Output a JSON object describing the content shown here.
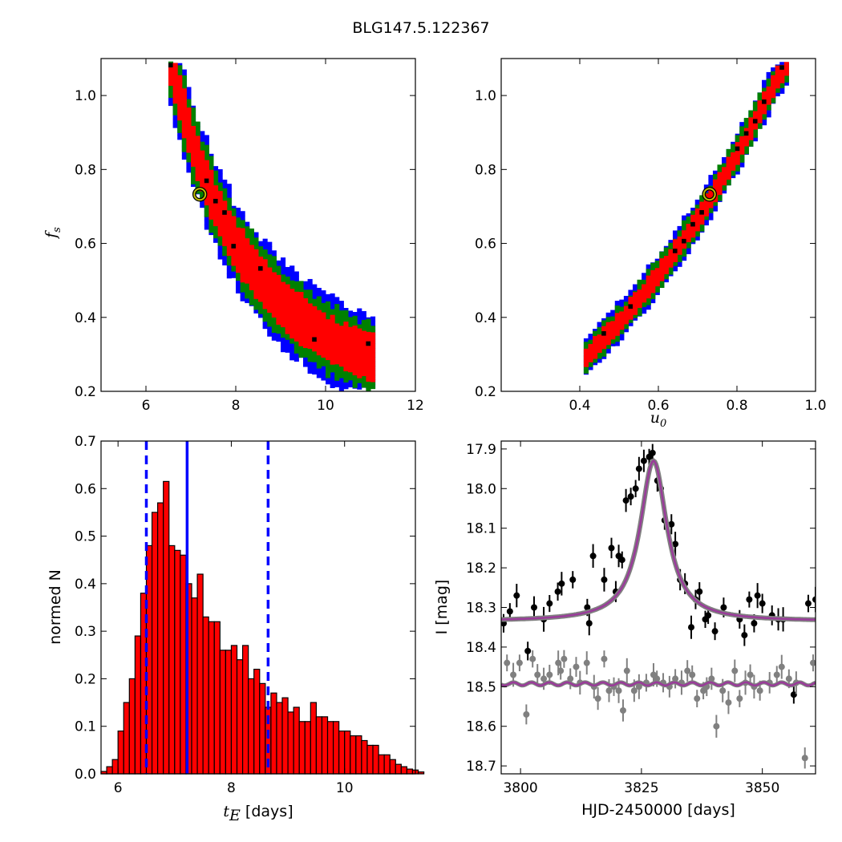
{
  "title": "BLG147.5.122367",
  "chart_data": [
    {
      "type": "heatmap",
      "panel": "top-left",
      "xlabel": "",
      "ylabel_main": "f",
      "ylabel_sub": "s",
      "xlim": [
        5,
        12
      ],
      "ylim": [
        0.2,
        1.1
      ],
      "xticks": [
        6,
        8,
        10,
        12
      ],
      "xtick_labels": [
        "6",
        "8",
        "10",
        "12"
      ],
      "yticks": [
        0.2,
        0.4,
        0.6,
        0.8,
        1.0
      ],
      "ytick_labels": [
        "0.2",
        "0.4",
        "0.6",
        "0.8",
        "1.0"
      ],
      "band": [
        [
          6.5,
          1.08
        ],
        [
          7.0,
          0.86
        ],
        [
          7.5,
          0.7
        ],
        [
          8.0,
          0.58
        ],
        [
          8.5,
          0.5
        ],
        [
          9.0,
          0.43
        ],
        [
          9.5,
          0.38
        ],
        [
          10.0,
          0.34
        ],
        [
          10.5,
          0.31
        ],
        [
          11.0,
          0.29
        ]
      ],
      "best_fit": [
        7.2,
        0.733
      ],
      "colors": {
        "3sigma": "#0000ff",
        "2sigma": "#008000",
        "1sigma": "#ff0000",
        "best": "#000000",
        "marker_edge": "#bfbf00"
      }
    },
    {
      "type": "heatmap",
      "panel": "top-right",
      "xlabel_main": "u",
      "xlabel_sub": "0",
      "ylabel": "",
      "xlim": [
        0.2,
        1.0
      ],
      "ylim": [
        0.2,
        1.1
      ],
      "xticks": [
        0.4,
        0.6,
        0.8,
        1.0
      ],
      "xtick_labels": [
        "0.4",
        "0.6",
        "0.8",
        "1.0"
      ],
      "yticks": [
        0.2,
        0.4,
        0.6,
        0.8,
        1.0
      ],
      "ytick_labels": [
        "0.2",
        "0.4",
        "0.6",
        "0.8",
        "1.0"
      ],
      "band": [
        [
          0.41,
          0.29
        ],
        [
          0.5,
          0.39
        ],
        [
          0.6,
          0.52
        ],
        [
          0.7,
          0.67
        ],
        [
          0.8,
          0.85
        ],
        [
          0.9,
          1.05
        ],
        [
          0.92,
          1.08
        ]
      ],
      "best_fit": [
        0.73,
        0.733
      ],
      "colors": {
        "3sigma": "#0000ff",
        "2sigma": "#008000",
        "1sigma": "#ff0000",
        "best": "#000000",
        "marker_edge": "#bfbf00"
      }
    },
    {
      "type": "bar",
      "panel": "bottom-left",
      "xlabel_main": "t",
      "xlabel_sub": "E",
      "xlabel_unit": " [days]",
      "ylabel": "normed N",
      "xlim": [
        5.7,
        11.25
      ],
      "ylim": [
        0,
        0.7
      ],
      "xticks": [
        6,
        8,
        10
      ],
      "xtick_labels": [
        "6",
        "8",
        "10"
      ],
      "yticks": [
        0.0,
        0.1,
        0.2,
        0.3,
        0.4,
        0.5,
        0.6,
        0.7
      ],
      "ytick_labels": [
        "0.0",
        "0.1",
        "0.2",
        "0.3",
        "0.4",
        "0.5",
        "0.6",
        "0.7"
      ],
      "bin_start": 5.7,
      "bin_width": 0.1,
      "values": [
        0.005,
        0.015,
        0.03,
        0.09,
        0.15,
        0.2,
        0.29,
        0.38,
        0.48,
        0.55,
        0.57,
        0.615,
        0.48,
        0.47,
        0.46,
        0.4,
        0.37,
        0.42,
        0.33,
        0.32,
        0.32,
        0.26,
        0.26,
        0.27,
        0.24,
        0.27,
        0.2,
        0.22,
        0.19,
        0.14,
        0.17,
        0.15,
        0.16,
        0.13,
        0.14,
        0.11,
        0.11,
        0.15,
        0.12,
        0.12,
        0.11,
        0.11,
        0.09,
        0.09,
        0.08,
        0.08,
        0.07,
        0.06,
        0.06,
        0.04,
        0.04,
        0.03,
        0.02,
        0.015,
        0.01,
        0.008,
        0.004
      ],
      "median": 7.22,
      "interval": [
        6.5,
        8.65
      ],
      "colors": {
        "bar": "#ff0000",
        "edge": "#000000",
        "lines": "#0000ff"
      }
    },
    {
      "type": "scatter",
      "panel": "bottom-right",
      "xlabel": "HJD-2450000 [days]",
      "ylabel": "I [mag]",
      "xlim": [
        3796,
        3861
      ],
      "ylim": [
        18.72,
        17.88
      ],
      "xticks": [
        3800,
        3825,
        3850
      ],
      "xtick_labels": [
        "3800",
        "3825",
        "3850"
      ],
      "yticks": [
        17.9,
        18.0,
        18.1,
        18.2,
        18.3,
        18.4,
        18.5,
        18.6,
        18.7
      ],
      "ytick_labels": [
        "17.9",
        "18.0",
        "18.1",
        "18.2",
        "18.3",
        "18.4",
        "18.5",
        "18.6",
        "18.7"
      ],
      "model_lens": {
        "t0": 3827.5,
        "peak": 17.93,
        "baseline": 18.335,
        "width": 3.2
      },
      "model_residual": {
        "level": 18.493
      },
      "series": [
        {
          "x": [
            3796.5,
            3797.8,
            3799.2,
            3801.5,
            3802.8,
            3804.8,
            3806.0,
            3807.7,
            3808.5,
            3810.8,
            3813.8,
            3814.2,
            3815.0,
            3817.3,
            3818.8,
            3819.7,
            3820.3,
            3821.0,
            3821.8,
            3822.8,
            3823.8,
            3824.5,
            3825.5,
            3826.6,
            3827.3,
            3828.3,
            3829.0,
            3829.8,
            3831.2,
            3832.0,
            3833.0,
            3834.0,
            3835.3,
            3836.2,
            3837.0,
            3838.2,
            3838.8,
            3840.2,
            3842.0,
            3845.3,
            3846.3,
            3847.3,
            3848.3,
            3849.0,
            3850.0,
            3852.0,
            3853.3,
            3854.3,
            3856.5,
            3859.5,
            3861.0
          ],
          "y": [
            18.34,
            18.31,
            18.27,
            18.41,
            18.3,
            18.33,
            18.29,
            18.26,
            18.24,
            18.23,
            18.3,
            18.34,
            18.17,
            18.23,
            18.15,
            18.26,
            18.17,
            18.18,
            18.03,
            18.02,
            18.0,
            17.95,
            17.93,
            17.92,
            17.91,
            17.98,
            18.0,
            18.08,
            18.09,
            18.14,
            18.23,
            18.24,
            18.35,
            18.28,
            18.26,
            18.33,
            18.32,
            18.36,
            18.3,
            18.33,
            18.37,
            18.28,
            18.34,
            18.27,
            18.29,
            18.32,
            18.33,
            18.33,
            18.52,
            18.29,
            18.28
          ]
        },
        {
          "x": [
            3797.2,
            3798.5,
            3799.8,
            3801.2,
            3802.5,
            3803.5,
            3804.8,
            3806.0,
            3807.8,
            3808.3,
            3809.0,
            3810.3,
            3811.5,
            3812.3,
            3813.7,
            3815.2,
            3816.0,
            3817.3,
            3818.3,
            3819.3,
            3820.3,
            3821.2,
            3822.0,
            3823.5,
            3824.5,
            3826.0,
            3827.5,
            3828.2,
            3829.5,
            3830.8,
            3832.0,
            3833.3,
            3834.5,
            3835.5,
            3836.5,
            3837.8,
            3838.5,
            3839.5,
            3840.5,
            3841.8,
            3843.0,
            3844.3,
            3845.3,
            3846.5,
            3847.5,
            3848.3,
            3849.5,
            3851.5,
            3853.0,
            3854.0,
            3855.5,
            3857.0,
            3858.8,
            3860.5
          ],
          "y": [
            18.44,
            18.47,
            18.44,
            18.57,
            18.43,
            18.47,
            18.48,
            18.47,
            18.44,
            18.46,
            18.43,
            18.48,
            18.45,
            18.49,
            18.44,
            18.5,
            18.53,
            18.43,
            18.51,
            18.5,
            18.51,
            18.56,
            18.46,
            18.51,
            18.5,
            18.49,
            18.47,
            18.48,
            18.49,
            18.5,
            18.48,
            18.49,
            18.46,
            18.47,
            18.53,
            18.51,
            18.5,
            18.48,
            18.6,
            18.51,
            18.54,
            18.46,
            18.53,
            18.49,
            18.47,
            18.5,
            18.51,
            18.49,
            18.47,
            18.45,
            18.48,
            18.49,
            18.68,
            18.44
          ]
        }
      ],
      "colors": {
        "lens": "#000000",
        "residual": "#808080",
        "model": "#9a3b9a",
        "model_halo": "#808080"
      }
    }
  ]
}
